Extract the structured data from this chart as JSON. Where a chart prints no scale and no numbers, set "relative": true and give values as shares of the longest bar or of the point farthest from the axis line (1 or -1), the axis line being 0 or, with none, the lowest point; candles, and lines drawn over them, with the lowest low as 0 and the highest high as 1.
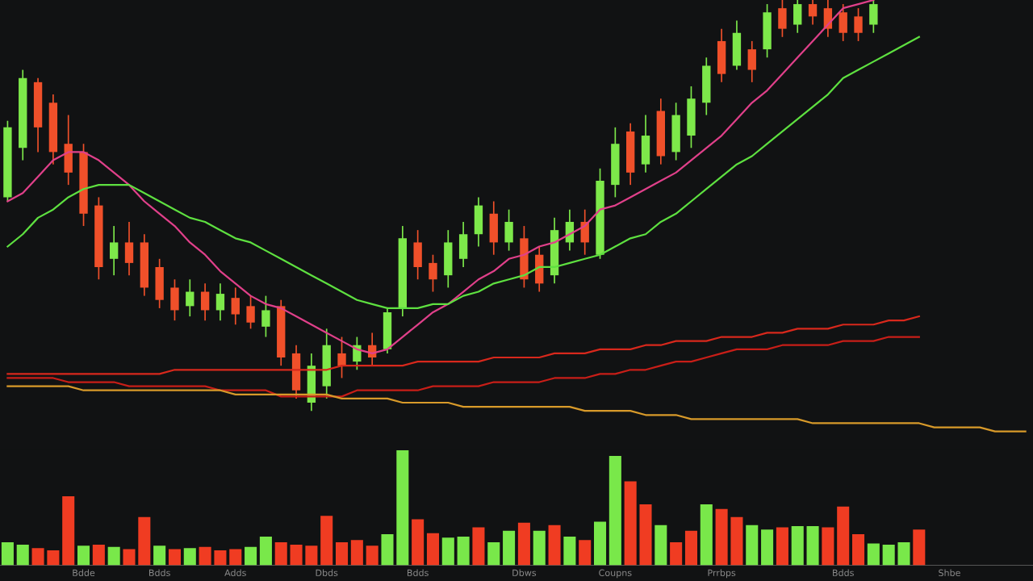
{
  "chart_data": [
    {
      "type": "candlestick",
      "relative": true,
      "tick_labels": false,
      "grid": false,
      "legend": false,
      "categories": [
        null,
        null,
        null,
        null,
        null,
        null,
        null,
        null,
        null,
        null,
        null,
        null,
        null,
        null,
        null,
        null,
        null,
        null,
        null,
        null,
        null,
        null,
        null,
        null,
        null,
        null,
        null,
        null,
        null,
        null,
        null,
        null,
        null,
        null,
        null,
        null,
        null,
        null,
        null,
        null,
        null,
        null,
        null,
        null,
        null,
        null,
        null,
        null,
        null,
        null,
        null,
        null,
        null,
        null,
        null,
        null,
        null,
        null,
        null,
        null,
        null,
        null,
        null,
        null,
        null,
        null,
        null,
        null
      ],
      "ohlc": [
        [
          0.52,
          0.706,
          0.51,
          0.69
        ],
        [
          0.64,
          0.83,
          0.61,
          0.81
        ],
        [
          0.8,
          0.81,
          0.63,
          0.69
        ],
        [
          0.75,
          0.77,
          0.6,
          0.63
        ],
        [
          0.65,
          0.72,
          0.55,
          0.58
        ],
        [
          0.63,
          0.65,
          0.45,
          0.48
        ],
        [
          0.5,
          0.52,
          0.32,
          0.35
        ],
        [
          0.37,
          0.45,
          0.33,
          0.41
        ],
        [
          0.41,
          0.46,
          0.33,
          0.36
        ],
        [
          0.41,
          0.43,
          0.28,
          0.3
        ],
        [
          0.35,
          0.37,
          0.25,
          0.27
        ],
        [
          0.3,
          0.32,
          0.22,
          0.245
        ],
        [
          0.255,
          0.32,
          0.23,
          0.29
        ],
        [
          0.29,
          0.31,
          0.22,
          0.245
        ],
        [
          0.245,
          0.31,
          0.22,
          0.285
        ],
        [
          0.275,
          0.3,
          0.21,
          0.235
        ],
        [
          0.255,
          0.28,
          0.2,
          0.215
        ],
        [
          0.205,
          0.28,
          0.18,
          0.245
        ],
        [
          0.255,
          0.27,
          0.11,
          0.13
        ],
        [
          0.14,
          0.16,
          0.03,
          0.05
        ],
        [
          0.02,
          0.14,
          0.0,
          0.11
        ],
        [
          0.06,
          0.2,
          0.03,
          0.16
        ],
        [
          0.14,
          0.18,
          0.08,
          0.11
        ],
        [
          0.12,
          0.18,
          0.1,
          0.16
        ],
        [
          0.16,
          0.19,
          0.11,
          0.13
        ],
        [
          0.15,
          0.25,
          0.14,
          0.24
        ],
        [
          0.25,
          0.45,
          0.23,
          0.42
        ],
        [
          0.41,
          0.44,
          0.32,
          0.35
        ],
        [
          0.36,
          0.38,
          0.29,
          0.32
        ],
        [
          0.33,
          0.44,
          0.3,
          0.41
        ],
        [
          0.37,
          0.46,
          0.35,
          0.43
        ],
        [
          0.43,
          0.52,
          0.4,
          0.5
        ],
        [
          0.48,
          0.51,
          0.38,
          0.41
        ],
        [
          0.41,
          0.49,
          0.39,
          0.46
        ],
        [
          0.42,
          0.45,
          0.3,
          0.32
        ],
        [
          0.38,
          0.4,
          0.29,
          0.31
        ],
        [
          0.33,
          0.47,
          0.31,
          0.44
        ],
        [
          0.41,
          0.49,
          0.39,
          0.46
        ],
        [
          0.46,
          0.49,
          0.38,
          0.41
        ],
        [
          0.38,
          0.59,
          0.37,
          0.56
        ],
        [
          0.55,
          0.69,
          0.52,
          0.65
        ],
        [
          0.68,
          0.7,
          0.55,
          0.58
        ],
        [
          0.6,
          0.72,
          0.58,
          0.67
        ],
        [
          0.73,
          0.76,
          0.6,
          0.62
        ],
        [
          0.63,
          0.75,
          0.61,
          0.72
        ],
        [
          0.67,
          0.79,
          0.64,
          0.76
        ],
        [
          0.75,
          0.86,
          0.72,
          0.84
        ],
        [
          0.9,
          0.93,
          0.8,
          0.82
        ],
        [
          0.84,
          0.95,
          0.83,
          0.92
        ],
        [
          0.88,
          0.9,
          0.8,
          0.83
        ],
        [
          0.88,
          0.99,
          0.86,
          0.97
        ],
        [
          0.98,
          1.0,
          0.91,
          0.93
        ],
        [
          0.94,
          1.0,
          0.92,
          0.99
        ],
        [
          0.99,
          1.0,
          0.94,
          0.96
        ],
        [
          0.98,
          1.0,
          0.91,
          0.93
        ],
        [
          0.97,
          0.99,
          0.9,
          0.92
        ],
        [
          0.96,
          0.98,
          0.9,
          0.92
        ],
        [
          0.94,
          1.0,
          0.92,
          0.99
        ],
        null,
        null,
        null,
        null,
        null,
        null,
        null,
        null,
        null,
        null
      ],
      "colors": [
        "#7de84a",
        "#7de84a",
        "#f0502a",
        "#f0502a",
        "#f0502a",
        "#f0502a",
        "#f0502a",
        "#7de84a",
        "#f0502a",
        "#f0502a",
        "#f0502a",
        "#f0502a",
        "#7de84a",
        "#f0502a",
        "#7de84a",
        "#f0502a",
        "#f0502a",
        "#7de84a",
        "#f0502a",
        "#f0502a",
        "#7de84a",
        "#7de84a",
        "#f0502a",
        "#7de84a",
        "#f0502a",
        "#7de84a",
        "#7de84a",
        "#f0502a",
        "#f0502a",
        "#7de84a",
        "#7de84a",
        "#7de84a",
        "#f0502a",
        "#7de84a",
        "#f0502a",
        "#f0502a",
        "#7de84a",
        "#7de84a",
        "#f0502a",
        "#7de84a",
        "#7de84a",
        "#f0502a",
        "#7de84a",
        "#f0502a",
        "#7de84a",
        "#7de84a",
        "#7de84a",
        "#f0502a",
        "#7de84a",
        "#f0502a",
        "#7de84a",
        "#f0502a",
        "#7de84a",
        "#f0502a",
        "#f0502a",
        "#f0502a",
        "#f0502a",
        "#7de84a",
        null,
        null,
        null,
        null,
        null,
        null,
        null,
        null,
        null,
        null
      ],
      "series": [
        {
          "type": "line",
          "color": "#e0408a",
          "values": [
            0.51,
            0.53,
            0.57,
            0.61,
            0.63,
            0.63,
            0.61,
            0.58,
            0.55,
            0.51,
            0.48,
            0.45,
            0.41,
            0.38,
            0.34,
            0.31,
            0.28,
            0.26,
            0.25,
            0.23,
            0.21,
            0.19,
            0.17,
            0.15,
            0.14,
            0.15,
            0.18,
            0.21,
            0.24,
            0.26,
            0.29,
            0.32,
            0.34,
            0.37,
            0.38,
            0.4,
            0.41,
            0.43,
            0.45,
            0.49,
            0.5,
            0.52,
            0.54,
            0.56,
            0.58,
            0.61,
            0.64,
            0.67,
            0.71,
            0.75,
            0.78,
            0.82,
            0.86,
            0.9,
            0.94,
            0.98,
            0.99,
            1.0,
            null,
            null,
            null,
            null,
            null,
            null,
            null,
            null,
            null,
            null
          ]
        },
        {
          "type": "line",
          "color": "#5ee040",
          "values": [
            0.4,
            0.43,
            0.47,
            0.49,
            0.52,
            0.54,
            0.55,
            0.55,
            0.55,
            0.53,
            0.51,
            0.49,
            0.47,
            0.46,
            0.44,
            0.42,
            0.41,
            0.39,
            0.37,
            0.35,
            0.33,
            0.31,
            0.29,
            0.27,
            0.26,
            0.25,
            0.25,
            0.25,
            0.26,
            0.26,
            0.28,
            0.29,
            0.31,
            0.32,
            0.33,
            0.35,
            0.35,
            0.36,
            0.37,
            0.38,
            0.4,
            0.42,
            0.43,
            0.46,
            0.48,
            0.51,
            0.54,
            0.57,
            0.6,
            0.62,
            0.65,
            0.68,
            0.71,
            0.74,
            0.77,
            0.81,
            0.83,
            0.85,
            0.87,
            0.89,
            0.91,
            null,
            null,
            null,
            null,
            null,
            null,
            null
          ]
        },
        {
          "type": "line",
          "color": "#d8281c",
          "values": [
            0.09,
            0.09,
            0.09,
            0.09,
            0.09,
            0.09,
            0.09,
            0.09,
            0.09,
            0.09,
            0.09,
            0.1,
            0.1,
            0.1,
            0.1,
            0.1,
            0.1,
            0.1,
            0.1,
            0.1,
            0.1,
            0.1,
            0.11,
            0.11,
            0.11,
            0.11,
            0.11,
            0.12,
            0.12,
            0.12,
            0.12,
            0.12,
            0.13,
            0.13,
            0.13,
            0.13,
            0.14,
            0.14,
            0.14,
            0.15,
            0.15,
            0.15,
            0.16,
            0.16,
            0.17,
            0.17,
            0.17,
            0.18,
            0.18,
            0.18,
            0.19,
            0.19,
            0.2,
            0.2,
            0.2,
            0.21,
            0.21,
            0.21,
            0.22,
            0.22,
            0.23,
            null,
            null,
            null,
            null,
            null,
            null,
            null
          ]
        },
        {
          "type": "line",
          "color": "#c81e18",
          "values": [
            0.08,
            0.08,
            0.08,
            0.08,
            0.07,
            0.07,
            0.07,
            0.07,
            0.06,
            0.06,
            0.06,
            0.06,
            0.06,
            0.06,
            0.05,
            0.05,
            0.05,
            0.05,
            0.035,
            0.035,
            0.035,
            0.035,
            0.035,
            0.05,
            0.05,
            0.05,
            0.05,
            0.05,
            0.06,
            0.06,
            0.06,
            0.06,
            0.07,
            0.07,
            0.07,
            0.07,
            0.08,
            0.08,
            0.08,
            0.09,
            0.09,
            0.1,
            0.1,
            0.11,
            0.12,
            0.12,
            0.13,
            0.14,
            0.15,
            0.15,
            0.15,
            0.16,
            0.16,
            0.16,
            0.16,
            0.17,
            0.17,
            0.17,
            0.18,
            0.18,
            0.18,
            null,
            null,
            null,
            null,
            null,
            null,
            null
          ]
        },
        {
          "type": "line",
          "color": "#d89a2a",
          "values": [
            0.06,
            0.06,
            0.06,
            0.06,
            0.06,
            0.05,
            0.05,
            0.05,
            0.05,
            0.05,
            0.05,
            0.05,
            0.05,
            0.05,
            0.05,
            0.04,
            0.04,
            0.04,
            0.04,
            0.04,
            0.04,
            0.04,
            0.03,
            0.03,
            0.03,
            0.03,
            0.02,
            0.02,
            0.02,
            0.02,
            0.01,
            0.01,
            0.01,
            0.01,
            0.01,
            0.01,
            0.01,
            0.01,
            0.0,
            0.0,
            0.0,
            0.0,
            -0.01,
            -0.01,
            -0.01,
            -0.02,
            -0.02,
            -0.02,
            -0.02,
            -0.02,
            -0.02,
            -0.02,
            -0.02,
            -0.03,
            -0.03,
            -0.03,
            -0.03,
            -0.03,
            -0.03,
            -0.03,
            -0.03,
            -0.04,
            -0.04,
            -0.04,
            -0.04,
            -0.05,
            -0.05,
            -0.05
          ]
        }
      ]
    },
    {
      "type": "bar",
      "relative": true,
      "tick_labels": "x",
      "grid": false,
      "categories": [
        null,
        null,
        null,
        null,
        null,
        "Bdde",
        null,
        null,
        null,
        null,
        "Bdds",
        null,
        null,
        null,
        null,
        "Adds",
        null,
        null,
        null,
        null,
        null,
        "Dbds",
        null,
        null,
        null,
        null,
        null,
        "Bdds",
        null,
        null,
        null,
        null,
        null,
        null,
        "Dbws",
        null,
        null,
        null,
        null,
        null,
        "Coupns",
        null,
        null,
        null,
        null,
        null,
        null,
        "Prrbps",
        null,
        null,
        null,
        null,
        null,
        null,
        null,
        "Bdds",
        null,
        null,
        null,
        null,
        null,
        null,
        "Shbe",
        null,
        null,
        null,
        null,
        null
      ],
      "values": [
        0.2,
        0.18,
        0.15,
        0.13,
        0.6,
        0.17,
        0.18,
        0.16,
        0.14,
        0.42,
        0.17,
        0.14,
        0.15,
        0.16,
        0.13,
        0.14,
        0.16,
        0.25,
        0.2,
        0.18,
        0.17,
        0.43,
        0.2,
        0.22,
        0.17,
        0.27,
        1.0,
        0.4,
        0.28,
        0.24,
        0.25,
        0.33,
        0.2,
        0.3,
        0.37,
        0.3,
        0.35,
        0.25,
        0.22,
        0.38,
        0.95,
        0.73,
        0.53,
        0.35,
        0.2,
        0.3,
        0.53,
        0.49,
        0.42,
        0.35,
        0.31,
        0.33,
        0.34,
        0.34,
        0.33,
        0.51,
        0.27,
        0.19,
        0.18,
        0.2,
        0.31,
        null,
        null,
        null,
        null,
        null,
        null,
        null
      ],
      "colors": [
        "#79e84a",
        "#79e84a",
        "#f03c22",
        "#f03c22",
        "#f03c22",
        "#79e84a",
        "#f03c22",
        "#79e84a",
        "#f03c22",
        "#f03c22",
        "#79e84a",
        "#f03c22",
        "#79e84a",
        "#f03c22",
        "#f03c22",
        "#f03c22",
        "#79e84a",
        "#79e84a",
        "#f03c22",
        "#f03c22",
        "#f03c22",
        "#f03c22",
        "#f03c22",
        "#f03c22",
        "#f03c22",
        "#79e84a",
        "#79e84a",
        "#f03c22",
        "#f03c22",
        "#79e84a",
        "#79e84a",
        "#f03c22",
        "#79e84a",
        "#79e84a",
        "#f03c22",
        "#79e84a",
        "#f03c22",
        "#79e84a",
        "#f03c22",
        "#79e84a",
        "#79e84a",
        "#f03c22",
        "#f03c22",
        "#79e84a",
        "#f03c22",
        "#f03c22",
        "#79e84a",
        "#f03c22",
        "#f03c22",
        "#79e84a",
        "#79e84a",
        "#f03c22",
        "#79e84a",
        "#79e84a",
        "#f03c22",
        "#f03c22",
        "#f03c22",
        "#79e84a",
        "#79e84a",
        "#79e84a",
        "#f03c22",
        null,
        null,
        null,
        null,
        null,
        null,
        null
      ]
    }
  ]
}
